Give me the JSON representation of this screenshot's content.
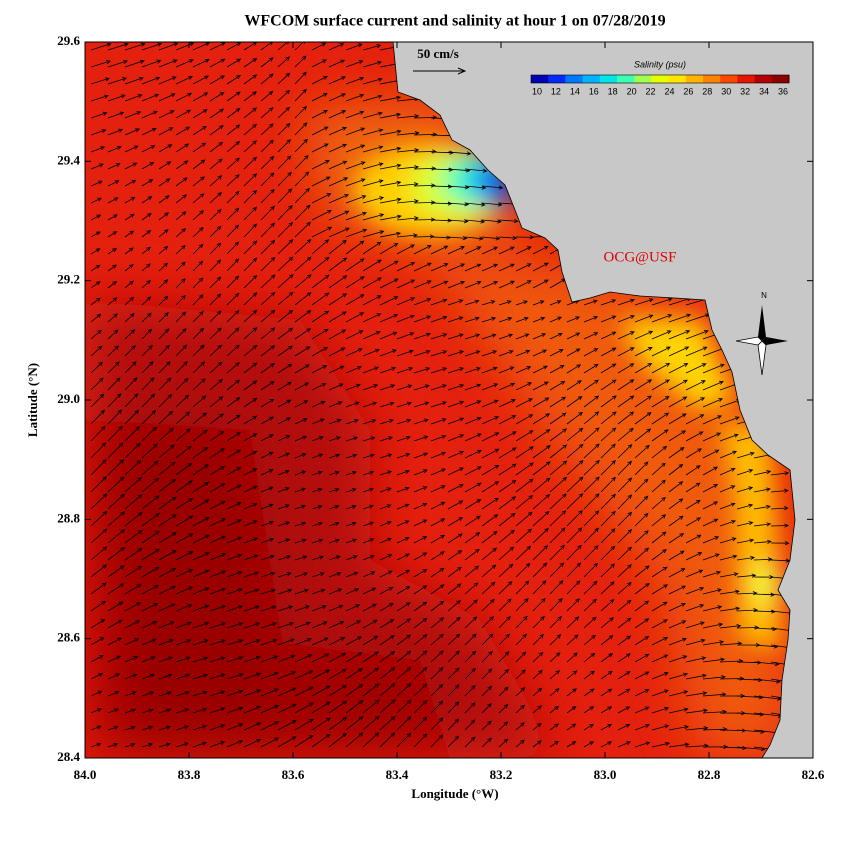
{
  "chart_data": {
    "type": "map",
    "title": "WFCOM surface current and salinity at hour 1 on 07/28/2019",
    "x_label": "Longitude (°W)",
    "y_label": "Latitude (°N)",
    "xlim": [
      84.0,
      82.6
    ],
    "ylim": [
      28.4,
      29.6
    ],
    "xticks": [
      {
        "value": 84.0,
        "label": "84.0"
      },
      {
        "value": 83.8,
        "label": "83.8"
      },
      {
        "value": 83.6,
        "label": "83.6"
      },
      {
        "value": 83.4,
        "label": "83.4"
      },
      {
        "value": 83.2,
        "label": "83.2"
      },
      {
        "value": 83.0,
        "label": "83.0"
      },
      {
        "value": 82.8,
        "label": "82.8"
      },
      {
        "value": 82.6,
        "label": "82.6"
      }
    ],
    "yticks": [
      {
        "value": 28.4,
        "label": "28.4"
      },
      {
        "value": 28.6,
        "label": "28.6"
      },
      {
        "value": 28.8,
        "label": "28.8"
      },
      {
        "value": 29.0,
        "label": "29.0"
      },
      {
        "value": 29.2,
        "label": "29.2"
      },
      {
        "value": 29.4,
        "label": "29.4"
      },
      {
        "value": 29.6,
        "label": "29.6"
      }
    ],
    "colorbar": {
      "title": "Salinity (psu)",
      "ticks": [
        10,
        12,
        14,
        16,
        18,
        20,
        22,
        24,
        26,
        28,
        30,
        32,
        34,
        36
      ],
      "colors": [
        "#0000b4",
        "#0028ff",
        "#0078ff",
        "#00b4ff",
        "#00e6e6",
        "#3cffb4",
        "#a0ff50",
        "#e6ff00",
        "#ffe600",
        "#ffb400",
        "#ff8200",
        "#ff4600",
        "#e61400",
        "#b40000",
        "#8c0000"
      ]
    },
    "scale_label": "50 cm/s",
    "credit": "OCG@USF",
    "compass_label": "N"
  }
}
